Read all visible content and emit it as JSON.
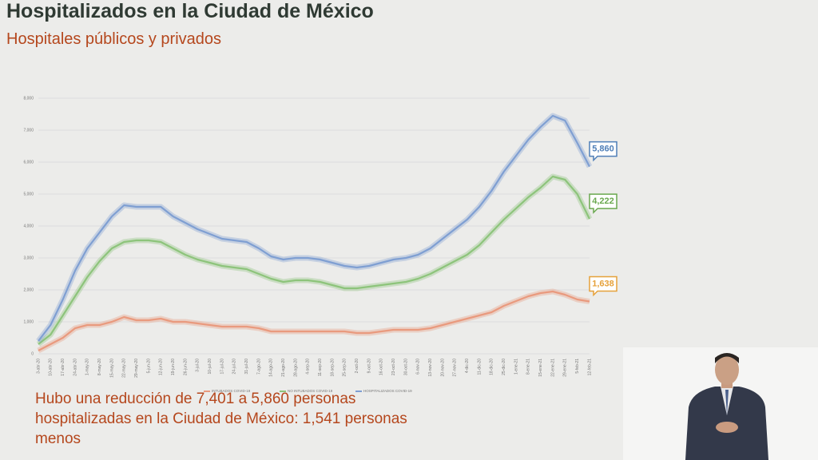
{
  "header": {
    "title": "Hospitalizados en la Ciudad de México",
    "subtitle": "Hospitales públicos y privados"
  },
  "chart_data": {
    "type": "line",
    "categories": [
      "3-abr-20",
      "10-abr-20",
      "17-abr-20",
      "24-abr-20",
      "1-may-20",
      "8-may-20",
      "15-may-20",
      "22-may-20",
      "29-may-20",
      "5-jun-20",
      "12-jun-20",
      "19-jun-20",
      "26-jun-20",
      "3-jul-20",
      "10-jul-20",
      "17-jul-20",
      "24-jul-20",
      "31-jul-20",
      "7-ago-20",
      "14-ago-20",
      "21-ago-20",
      "28-ago-20",
      "4-sep-20",
      "11-sep-20",
      "18-sep-20",
      "25-sep-20",
      "2-oct-20",
      "9-oct-20",
      "16-oct-20",
      "23-oct-20",
      "30-oct-20",
      "6-nov-20",
      "13-nov-20",
      "20-nov-20",
      "27-nov-20",
      "4-dic-20",
      "11-dic-20",
      "18-dic-20",
      "25-dic-20",
      "1-ene-21",
      "8-ene-21",
      "15-ene-21",
      "22-ene-21",
      "29-ene-21",
      "5-feb-21",
      "12-feb-21"
    ],
    "series": [
      {
        "name": "INTUBADOS COVID-19",
        "color": "#e99a7e",
        "label_color": "#e6a13a",
        "values": [
          100,
          300,
          500,
          800,
          900,
          900,
          1000,
          1150,
          1050,
          1050,
          1100,
          1000,
          1000,
          950,
          900,
          850,
          850,
          850,
          800,
          700,
          700,
          700,
          700,
          700,
          700,
          700,
          650,
          650,
          700,
          750,
          750,
          750,
          800,
          900,
          1000,
          1100,
          1200,
          1300,
          1500,
          1650,
          1800,
          1900,
          1950,
          1850,
          1700,
          1638
        ],
        "value_labels": [
          null,
          null,
          null,
          null,
          null,
          null,
          null,
          null,
          null,
          null,
          null,
          null,
          null,
          null,
          null,
          null,
          null,
          null,
          null,
          null,
          null,
          null,
          null,
          null,
          null,
          null,
          null,
          null,
          null,
          null,
          null,
          null,
          null,
          null,
          null,
          null,
          null,
          null,
          null,
          null,
          null,
          null,
          null,
          null,
          null,
          "1,638"
        ]
      },
      {
        "name": "NO INTUBADOS COVID-19",
        "color": "#8dc47b",
        "label_color": "#6aa84f",
        "values": [
          300,
          600,
          1200,
          1800,
          2400,
          2900,
          3300,
          3500,
          3550,
          3550,
          3500,
          3300,
          3100,
          2950,
          2850,
          2750,
          2700,
          2650,
          2500,
          2350,
          2250,
          2300,
          2300,
          2250,
          2150,
          2050,
          2050,
          2100,
          2150,
          2200,
          2250,
          2350,
          2500,
          2700,
          2900,
          3100,
          3400,
          3800,
          4200,
          4550,
          4900,
          5200,
          5550,
          5450,
          5000,
          4222
        ],
        "value_labels": [
          null,
          null,
          null,
          null,
          null,
          null,
          null,
          null,
          null,
          null,
          null,
          null,
          null,
          null,
          null,
          null,
          null,
          null,
          null,
          null,
          null,
          null,
          null,
          null,
          null,
          null,
          null,
          null,
          null,
          null,
          null,
          null,
          null,
          null,
          null,
          null,
          null,
          null,
          null,
          null,
          null,
          null,
          null,
          null,
          null,
          "4,222"
        ]
      },
      {
        "name": "HOSPITALIZADOS COVID-19",
        "color": "#7f9fd2",
        "label_color": "#4f7fb8",
        "values": [
          400,
          900,
          1700,
          2600,
          3300,
          3800,
          4300,
          4650,
          4600,
          4600,
          4600,
          4300,
          4100,
          3900,
          3750,
          3600,
          3550,
          3500,
          3300,
          3050,
          2950,
          3000,
          3000,
          2950,
          2850,
          2750,
          2700,
          2750,
          2850,
          2950,
          3000,
          3100,
          3300,
          3600,
          3900,
          4200,
          4600,
          5100,
          5700,
          6200,
          6700,
          7100,
          7450,
          7300,
          6600,
          5860
        ],
        "value_labels": [
          null,
          null,
          null,
          null,
          null,
          null,
          null,
          null,
          null,
          null,
          null,
          null,
          null,
          null,
          null,
          null,
          null,
          null,
          null,
          null,
          null,
          null,
          null,
          null,
          null,
          null,
          null,
          null,
          null,
          null,
          null,
          null,
          null,
          null,
          null,
          null,
          null,
          null,
          null,
          null,
          null,
          null,
          null,
          null,
          null,
          "5,860"
        ]
      }
    ],
    "ylim": [
      0,
      8000
    ],
    "yticks": [
      0,
      {
        "value": 1000,
        "label": "1,000"
      },
      {
        "value": 2000,
        "label": "2,000"
      },
      {
        "value": 3000,
        "label": "3,000"
      },
      {
        "value": 4000,
        "label": "4,000"
      },
      {
        "value": 5000,
        "label": "5,000"
      },
      {
        "value": 6000,
        "label": "6,000"
      },
      {
        "value": 7000,
        "label": "7,000"
      },
      {
        "value": 8000,
        "label": "8,000"
      }
    ],
    "grid": true,
    "legend": "bottom"
  },
  "annotation": "Hubo una reducción de 7,401 a 5,860 personas hospitalizadas en la Ciudad de México: 1,541 personas menos"
}
